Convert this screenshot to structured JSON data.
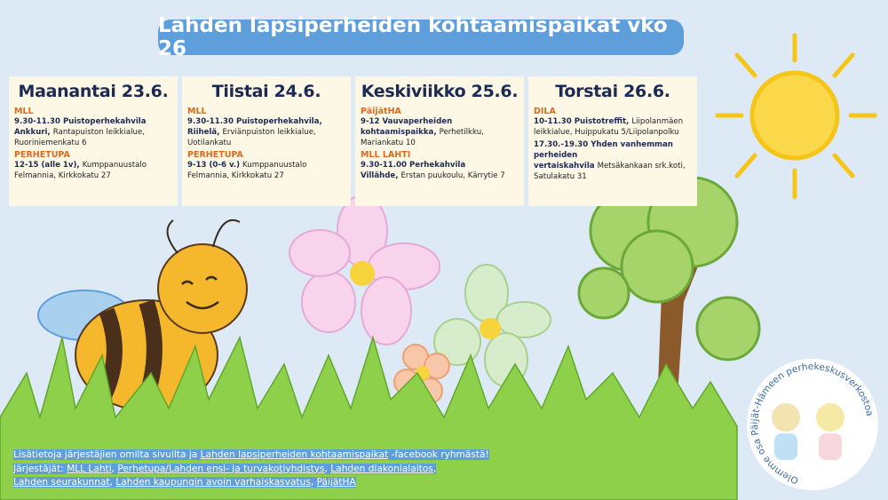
{
  "title": "Lahden lapsiperheiden kohtaamispaikat vko 26",
  "days": [
    {
      "heading": "Maanantai 23.6.",
      "orgs": [
        {
          "org": "MLL",
          "events": [
            {
              "bold": "9.30-11.30 Puistoperhekahvila Ankkuri,",
              "text": "Rantapuiston leikkialue, Ruoriniemenkatu 6"
            }
          ]
        },
        {
          "org": "PERHETUPA",
          "events": [
            {
              "bold": "12-15 (alle 1v),",
              "text": "Kumppanuustalo Felmannia, Kirkkokatu 27"
            }
          ]
        }
      ]
    },
    {
      "heading": "Tiistai 24.6.",
      "orgs": [
        {
          "org": "MLL",
          "events": [
            {
              "bold": "9.30-11.30 Puistoperhekahvila, Riihelä,",
              "text": "Erviänpuiston leikkialue, Uotilankatu"
            }
          ]
        },
        {
          "org": "PERHETUPA",
          "events": [
            {
              "bold": "9-13 (0-6 v.)",
              "text": "Kumppanuustalo Felmannia, Kirkkokatu 27"
            }
          ]
        }
      ]
    },
    {
      "heading": "Keskiviikko 25.6.",
      "orgs": [
        {
          "org": "PäijätHA",
          "events": [
            {
              "bold": "9-12 Vauvaperheiden kohtaamispaikka,",
              "text": "Perhetilkku, Mariankatu 10"
            }
          ]
        },
        {
          "org": "MLL LAHTI",
          "events": [
            {
              "bold": "9.30-11.00 Perhekahvila Villähde,",
              "text": "Erstan puukoulu, Kärrytie 7"
            }
          ]
        }
      ]
    },
    {
      "heading": "Torstai 26.6.",
      "orgs": [
        {
          "org": "DILA",
          "events": [
            {
              "bold": "10-11.30 Puistotreffit,",
              "text": "Liipolanmäen leikkialue, Huippukatu 5/Liipolanpolku"
            },
            {
              "bold": "17.30.-19.30 Yhden vanhemman perheiden vertaiskahvila",
              "text": "Metsäkankaan srk.koti, Satulakatu 31"
            }
          ]
        }
      ]
    }
  ],
  "footer": {
    "lines": [
      [
        {
          "text": "Lisätietoja järjestäjien omilta sivuilta ja "
        },
        {
          "text": "Lahden lapsiperheiden kohtaamispaikat",
          "link": true
        },
        {
          "text": " -facebook ryhmästä!"
        }
      ],
      [
        {
          "text": "Järjestäjät: "
        },
        {
          "text": "MLL Lahti",
          "link": true
        },
        {
          "text": ", "
        },
        {
          "text": "Perhetupa/Lahden ensi- ja turvakotiyhdistys",
          "link": true
        },
        {
          "text": ", "
        },
        {
          "text": "Lahden diakonialaitos",
          "link": true
        },
        {
          "text": ","
        }
      ],
      [
        {
          "text": "Lahden seurakunnat",
          "link": true
        },
        {
          "text": ", "
        },
        {
          "text": "Lahden kaupungin avoin varhaiskasvatus",
          "link": true
        },
        {
          "text": ", "
        },
        {
          "text": "PäijätHA",
          "link": true
        }
      ]
    ]
  },
  "logo": {
    "text": "Olemme osa Päijät-Hämeen perhekeskusverkostoa"
  }
}
